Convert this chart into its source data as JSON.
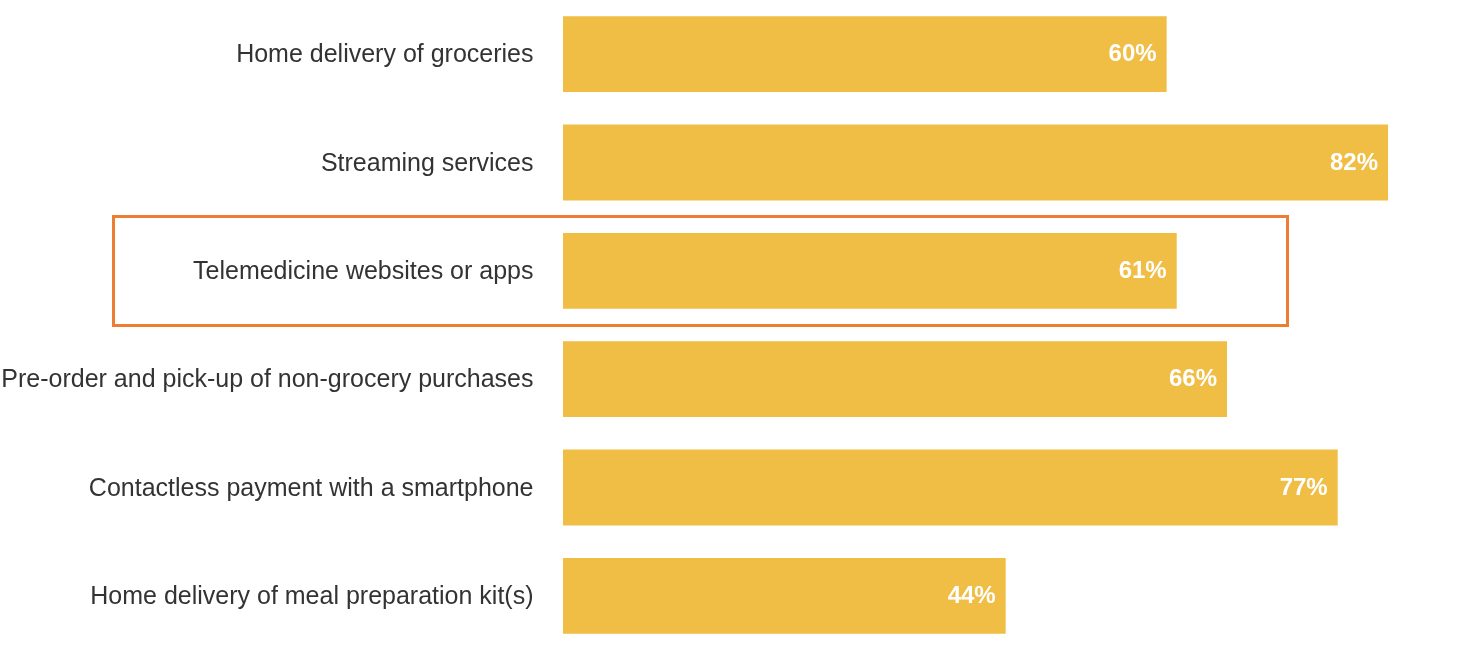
{
  "chart_data": {
    "type": "bar",
    "orientation": "horizontal",
    "categories": [
      "Home delivery of groceries",
      "Streaming services",
      "Telemedicine websites or apps",
      "Pre-order and pick-up of non-grocery purchases",
      "Contactless payment with a smartphone",
      "Home delivery of meal preparation kit(s)"
    ],
    "values": [
      60,
      82,
      61,
      66,
      77,
      44
    ],
    "value_labels": [
      "60%",
      "82%",
      "61%",
      "66%",
      "77%",
      "44%"
    ],
    "color": "#f0bd45"
  }
}
